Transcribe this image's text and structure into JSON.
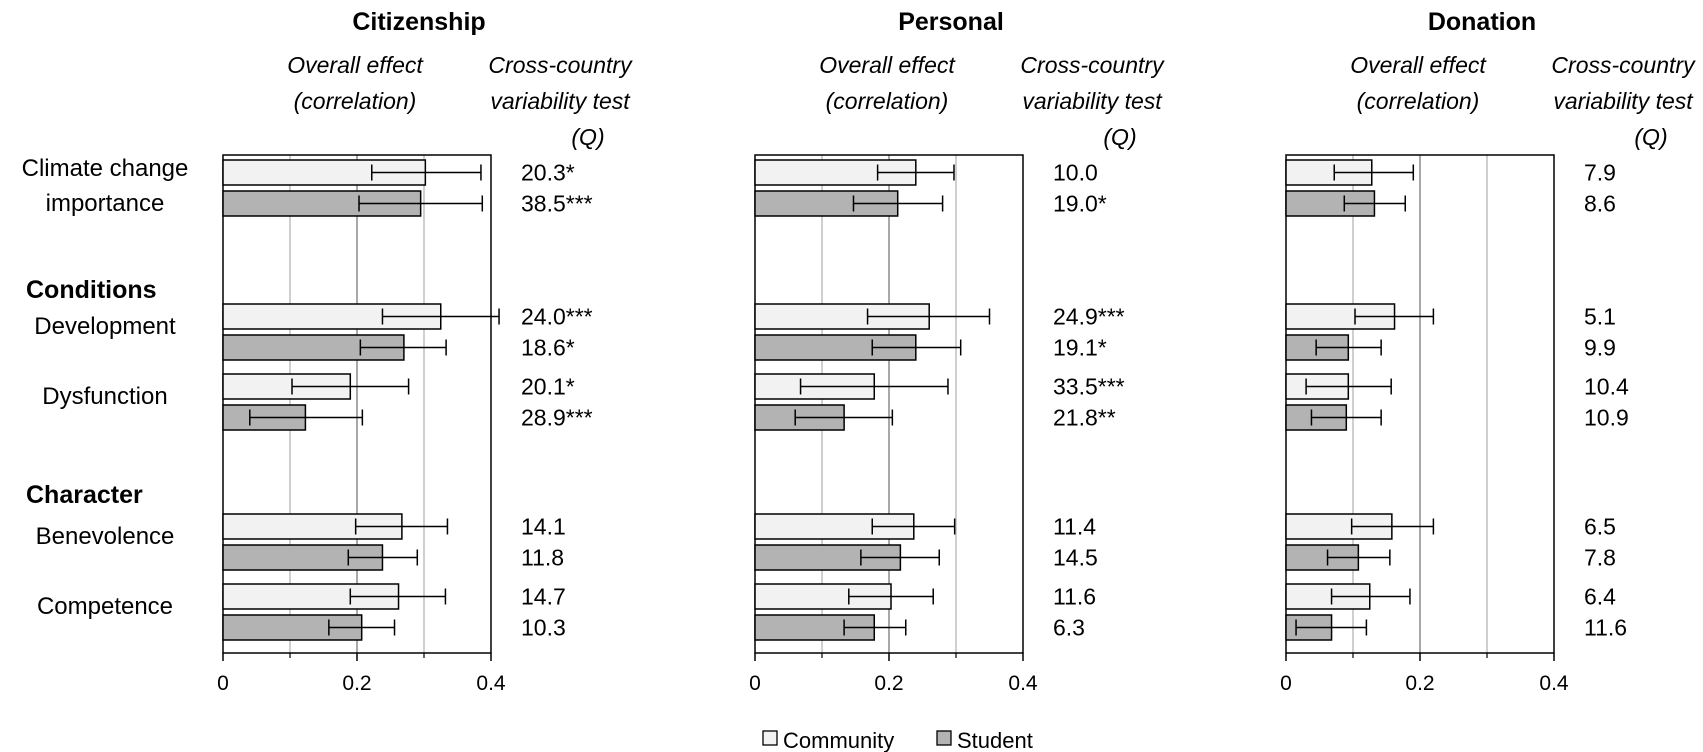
{
  "chart_data": {
    "type": "bar",
    "orientation": "horizontal",
    "xlim": [
      0,
      0.4
    ],
    "x_ticks": [
      "0",
      "0.2",
      "0.4"
    ],
    "grid": true,
    "column_headers": {
      "effect": [
        "Overall effect",
        "(correlation)"
      ],
      "q": [
        "Cross-country",
        "variability  test",
        "(Q)"
      ]
    },
    "groups": [
      {
        "label": "",
        "rows": [
          "climate"
        ]
      },
      {
        "label": "Conditions",
        "rows": [
          "development",
          "dysfunction"
        ]
      },
      {
        "label": "Character",
        "rows": [
          "benevolence",
          "competence"
        ]
      }
    ],
    "rows": [
      {
        "key": "climate",
        "label": [
          "Climate change",
          "importance"
        ]
      },
      {
        "key": "development",
        "label": [
          "Development"
        ]
      },
      {
        "key": "dysfunction",
        "label": [
          "Dysfunction"
        ]
      },
      {
        "key": "benevolence",
        "label": [
          "Benevolence"
        ]
      },
      {
        "key": "competence",
        "label": [
          "Competence"
        ]
      }
    ],
    "series_names": [
      "Community",
      "Student"
    ],
    "series_colors": [
      "#f2f2f2",
      "#b3b3b3"
    ],
    "panels": [
      {
        "title": "Citizenship",
        "community": {
          "values": [
            0.302,
            0.325,
            0.19,
            0.267,
            0.262
          ],
          "ci_low": [
            0.222,
            0.238,
            0.103,
            0.198,
            0.19
          ],
          "ci_high": [
            0.385,
            0.412,
            0.277,
            0.335,
            0.332
          ],
          "q": [
            "20.3*",
            "24.0***",
            "20.1*",
            "14.1",
            "14.7"
          ]
        },
        "student": {
          "values": [
            0.295,
            0.27,
            0.123,
            0.238,
            0.207
          ],
          "ci_low": [
            0.203,
            0.205,
            0.04,
            0.187,
            0.158
          ],
          "ci_high": [
            0.387,
            0.333,
            0.208,
            0.29,
            0.256
          ],
          "q": [
            "38.5***",
            "18.6*",
            "28.9***",
            "11.8",
            "10.3"
          ]
        }
      },
      {
        "title": "Personal",
        "community": {
          "values": [
            0.24,
            0.26,
            0.178,
            0.237,
            0.203
          ],
          "ci_low": [
            0.183,
            0.168,
            0.068,
            0.175,
            0.14
          ],
          "ci_high": [
            0.297,
            0.35,
            0.288,
            0.298,
            0.266
          ],
          "q": [
            "10.0",
            "24.9***",
            "33.5***",
            "11.4",
            "11.6"
          ]
        },
        "student": {
          "values": [
            0.213,
            0.24,
            0.133,
            0.217,
            0.178
          ],
          "ci_low": [
            0.147,
            0.175,
            0.06,
            0.158,
            0.133
          ],
          "ci_high": [
            0.28,
            0.307,
            0.205,
            0.275,
            0.225
          ],
          "q": [
            "19.0*",
            "19.1*",
            "21.8**",
            "14.5",
            "6.3"
          ]
        }
      },
      {
        "title": "Donation",
        "community": {
          "values": [
            0.128,
            0.162,
            0.093,
            0.158,
            0.125
          ],
          "ci_low": [
            0.072,
            0.103,
            0.03,
            0.098,
            0.068
          ],
          "ci_high": [
            0.19,
            0.22,
            0.157,
            0.22,
            0.185
          ],
          "q": [
            "7.9",
            "5.1",
            "10.4",
            "6.5",
            "6.4"
          ]
        },
        "student": {
          "values": [
            0.132,
            0.093,
            0.09,
            0.108,
            0.068
          ],
          "ci_low": [
            0.087,
            0.045,
            0.038,
            0.062,
            0.015
          ],
          "ci_high": [
            0.178,
            0.142,
            0.142,
            0.155,
            0.12
          ],
          "q": [
            "8.6",
            "9.9",
            "10.9",
            "7.8",
            "11.6"
          ]
        }
      }
    ]
  }
}
